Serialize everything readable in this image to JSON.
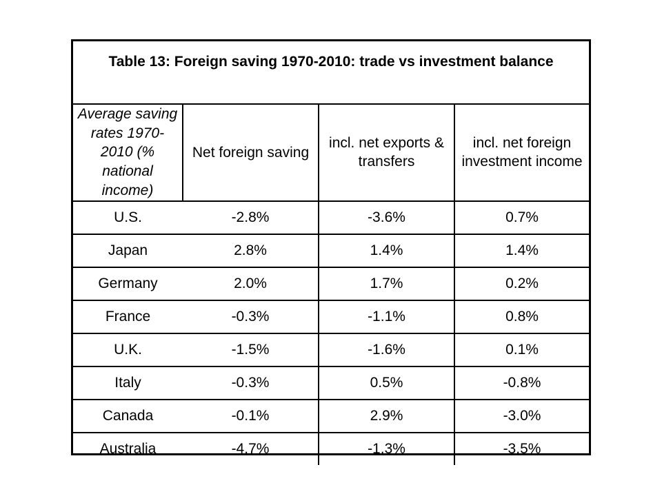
{
  "table": {
    "title": "Table 13: Foreign saving 1970-2010: trade vs investment balance",
    "corner_label": "Average saving rates 1970-2010 (% national income)",
    "columns": [
      "Net foreign saving",
      "incl. net exports & transfers",
      "incl. net foreign investment income"
    ],
    "rows": [
      {
        "country": "U.S.",
        "values": [
          "-2.8%",
          "-3.6%",
          "0.7%"
        ]
      },
      {
        "country": "Japan",
        "values": [
          "2.8%",
          "1.4%",
          "1.4%"
        ]
      },
      {
        "country": "Germany",
        "values": [
          "2.0%",
          "1.7%",
          "0.2%"
        ]
      },
      {
        "country": "France",
        "values": [
          "-0.3%",
          "-1.1%",
          "0.8%"
        ]
      },
      {
        "country": "U.K.",
        "values": [
          "-1.5%",
          "-1.6%",
          "0.1%"
        ]
      },
      {
        "country": "Italy",
        "values": [
          "-0.3%",
          "0.5%",
          "-0.8%"
        ]
      },
      {
        "country": "Canada",
        "values": [
          "-0.1%",
          "2.9%",
          "-3.0%"
        ]
      },
      {
        "country": "Australia",
        "values": [
          "-4.7%",
          "-1.3%",
          "-3.5%"
        ]
      }
    ]
  }
}
